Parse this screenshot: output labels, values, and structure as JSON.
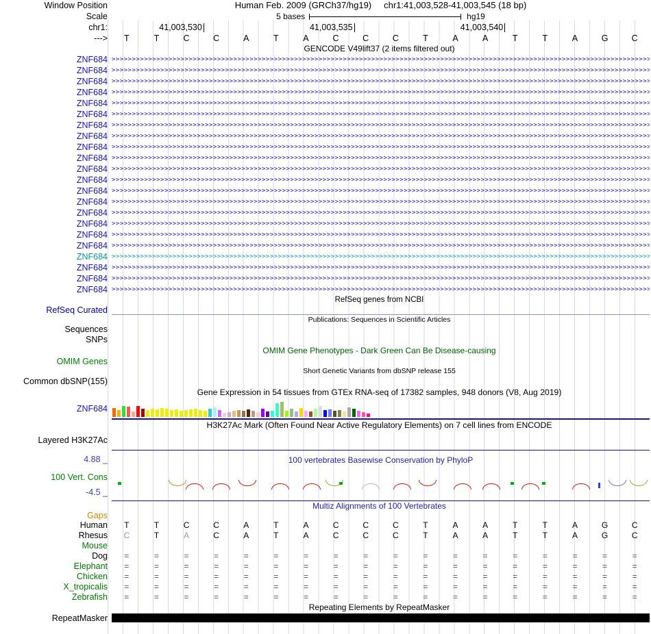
{
  "header": {
    "window_position_label": "Window Position",
    "assembly_title": "Human Feb. 2009 (GRCh37/hg19)",
    "position_title": "chr1:41,003,528-41,003,545 (18 bp)",
    "scale_label": "Scale",
    "scale_text": "5 bases",
    "assembly_short": "hg19",
    "chrom_label": "chr1:",
    "strand_label": "--->",
    "ruler_ticks": [
      {
        "label": "41,003,530",
        "base_end": 3
      },
      {
        "label": "41,003,535",
        "base_end": 8
      },
      {
        "label": "41,003,540",
        "base_end": 13
      }
    ],
    "sequence": [
      "T",
      "T",
      "C",
      "C",
      "A",
      "T",
      "A",
      "C",
      "C",
      "C",
      "T",
      "A",
      "A",
      "T",
      "T",
      "A",
      "G",
      "C"
    ]
  },
  "gencode": {
    "title": "GENCODE V49lift37 (2 items filtered out)",
    "gene_label": "ZNF684",
    "row_count": 22,
    "highlight_index": 18,
    "item_color": "#1414b4",
    "highlight_color": "#009a9a"
  },
  "refseq": {
    "section_title": "RefSeq genes from NCBI",
    "track_label": "RefSeq Curated",
    "label_color": "#000096"
  },
  "publications": {
    "section_title": "Publications: Sequences in Scientific Articles",
    "sequences_label": "Sequences",
    "snps_label": "SNPs"
  },
  "omim": {
    "section_title": "OMIM Gene Phenotypes - Dark Green Can Be Disease-causing",
    "title_color": "#006400",
    "track_label": "OMIM Genes",
    "label_color": "#008000"
  },
  "dbsnp": {
    "section_title": "Short Genetic Variants from dbSNP release 155",
    "track_label": "Common dbSNP(155)"
  },
  "gtex": {
    "section_title": "Gene Expression in 54 tissues from GTEx RNA-seq of 17382 samples, 948 donors (V8, Aug 2019)",
    "track_label": "ZNF684",
    "label_color": "#1414b4",
    "bars": [
      {
        "color": "#FF6600",
        "h": 13
      },
      {
        "color": "#FFAA00",
        "h": 10
      },
      {
        "color": "#33DD33",
        "h": 16
      },
      {
        "color": "#FF5555",
        "h": 15
      },
      {
        "color": "#FFAA99",
        "h": 8
      },
      {
        "color": "#FF0000",
        "h": 16
      },
      {
        "color": "#AA0000",
        "h": 12
      },
      {
        "color": "#EEEE00",
        "h": 10
      },
      {
        "color": "#EEEE00",
        "h": 12
      },
      {
        "color": "#EEEE00",
        "h": 11
      },
      {
        "color": "#EEEE00",
        "h": 13
      },
      {
        "color": "#EEEE00",
        "h": 12
      },
      {
        "color": "#EEEE00",
        "h": 10
      },
      {
        "color": "#EEEE00",
        "h": 11
      },
      {
        "color": "#EEEE00",
        "h": 9
      },
      {
        "color": "#EEEE00",
        "h": 10
      },
      {
        "color": "#EEEE00",
        "h": 11
      },
      {
        "color": "#EEEE00",
        "h": 12
      },
      {
        "color": "#EEEE00",
        "h": 10
      },
      {
        "color": "#EEEE00",
        "h": 9
      },
      {
        "color": "#33CCCC",
        "h": 12
      },
      {
        "color": "#AAEEFF",
        "h": 14
      },
      {
        "color": "#CC66FF",
        "h": 10
      },
      {
        "color": "#FFCCCC",
        "h": 6
      },
      {
        "color": "#CCAADD",
        "h": 7
      },
      {
        "color": "#EEBB77",
        "h": 9
      },
      {
        "color": "#CC9955",
        "h": 10
      },
      {
        "color": "#8B7355",
        "h": 9
      },
      {
        "color": "#552200",
        "h": 11
      },
      {
        "color": "#BB9988",
        "h": 9
      },
      {
        "color": "#FFCCCC",
        "h": 7
      },
      {
        "color": "#9900FF",
        "h": 12
      },
      {
        "color": "#660099",
        "h": 8
      },
      {
        "color": "#22FFDD",
        "h": 9
      },
      {
        "color": "#33FFC2",
        "h": 20
      },
      {
        "color": "#AABB66",
        "h": 22
      },
      {
        "color": "#99FF00",
        "h": 9
      },
      {
        "color": "#99BB88",
        "h": 12
      },
      {
        "color": "#AAAAFF",
        "h": 8
      },
      {
        "color": "#FFD700",
        "h": 13
      },
      {
        "color": "#FFAAFF",
        "h": 9
      },
      {
        "color": "#995522",
        "h": 8
      },
      {
        "color": "#AAFF99",
        "h": 12
      },
      {
        "color": "#DDDDDD",
        "h": 16
      },
      {
        "color": "#0000FF",
        "h": 10
      },
      {
        "color": "#7777FF",
        "h": 11
      },
      {
        "color": "#555522",
        "h": 9
      },
      {
        "color": "#778855",
        "h": 10
      },
      {
        "color": "#FFDD99",
        "h": 8
      },
      {
        "color": "#AAAAAA",
        "h": 14
      },
      {
        "color": "#006600",
        "h": 12
      },
      {
        "color": "#FF66FF",
        "h": 9
      },
      {
        "color": "#FF5599",
        "h": 7
      },
      {
        "color": "#FF00BB",
        "h": 5
      }
    ]
  },
  "h3k27ac": {
    "section_title": "H3K27Ac Mark (Often Found Near Active Regulatory Elements) on 7 cell lines from ENCODE",
    "track_label": "Layered H3K27Ac"
  },
  "phylop": {
    "section_title": "100 vertebrates Basewise Conservation by PhyloP",
    "title_color": "#2222aa",
    "track_label": "100 Vert. Cons",
    "label_color": "#008000",
    "max_label": "4.88 _",
    "min_label": "-4.5 _",
    "axis_color": "#3c3cb4",
    "marks": [
      {
        "base": 0.2,
        "kind": "dot",
        "color": "#00b000"
      },
      {
        "base": 1.9,
        "kind": "arc_down",
        "color": "#b09a20"
      },
      {
        "base": 2.45,
        "kind": "arc_up",
        "color": "#cc2010"
      },
      {
        "base": 3.35,
        "kind": "arc_up",
        "color": "#cc2010"
      },
      {
        "base": 4.2,
        "kind": "arc_down",
        "color": "#cc2010"
      },
      {
        "base": 5.3,
        "kind": "arc_up",
        "color": "#cc2010"
      },
      {
        "base": 6.35,
        "kind": "arc_up",
        "color": "#cc2010"
      },
      {
        "base": 7.1,
        "kind": "arc_down",
        "color": "#a8a432"
      },
      {
        "base": 7.55,
        "kind": "dot",
        "color": "#00b000"
      },
      {
        "base": 8.3,
        "kind": "arc_up",
        "color": "#b8b8b8"
      },
      {
        "base": 9.35,
        "kind": "arc_up",
        "color": "#cc2010"
      },
      {
        "base": 10.2,
        "kind": "arc_down",
        "color": "#cc2010"
      },
      {
        "base": 11.35,
        "kind": "arc_up",
        "color": "#cc2010"
      },
      {
        "base": 12.3,
        "kind": "arc_up",
        "color": "#cc2010"
      },
      {
        "base": 13.25,
        "kind": "dot",
        "color": "#00b000"
      },
      {
        "base": 13.6,
        "kind": "arc_up",
        "color": "#cc2010"
      },
      {
        "base": 14.3,
        "kind": "dot",
        "color": "#00b000"
      },
      {
        "base": 15.3,
        "kind": "arc_up",
        "color": "#cc2010"
      },
      {
        "base": 16.15,
        "kind": "tick",
        "color": "#3344cc"
      },
      {
        "base": 16.5,
        "kind": "arc_down",
        "color": "#6677cc"
      },
      {
        "base": 17.2,
        "kind": "arc_down",
        "color": "#a8a432"
      }
    ]
  },
  "multiz": {
    "section_title": "Multiz Alignments of 100 Vertebrates",
    "title_color": "#2222aa",
    "gaps_label": "Gaps",
    "gaps_color": "#cc8800",
    "gap_char": "=",
    "species": [
      {
        "name": "Human",
        "color": "#000000",
        "type": "bases",
        "bases": [
          {
            "b": "T"
          },
          {
            "b": "T"
          },
          {
            "b": "C"
          },
          {
            "b": "C"
          },
          {
            "b": "A"
          },
          {
            "b": "T"
          },
          {
            "b": "A"
          },
          {
            "b": "C"
          },
          {
            "b": "C"
          },
          {
            "b": "C"
          },
          {
            "b": "T"
          },
          {
            "b": "A"
          },
          {
            "b": "A"
          },
          {
            "b": "T"
          },
          {
            "b": "T"
          },
          {
            "b": "A"
          },
          {
            "b": "G"
          },
          {
            "b": "C"
          }
        ]
      },
      {
        "name": "Rhesus",
        "color": "#000000",
        "type": "bases",
        "bases": [
          {
            "b": "C",
            "dim": true
          },
          {
            "b": "T"
          },
          {
            "b": "A",
            "dim": true
          },
          {
            "b": "C"
          },
          {
            "b": "A"
          },
          {
            "b": "T"
          },
          {
            "b": "A"
          },
          {
            "b": "C"
          },
          {
            "b": "C"
          },
          {
            "b": "C"
          },
          {
            "b": "T"
          },
          {
            "b": "A"
          },
          {
            "b": "A"
          },
          {
            "b": "T"
          },
          {
            "b": "T"
          },
          {
            "b": "A"
          },
          {
            "b": "G"
          },
          {
            "b": "C"
          }
        ]
      },
      {
        "name": "Mouse",
        "color": "#007800",
        "type": "empty"
      },
      {
        "name": "Dog",
        "color": "#000000",
        "type": "gaps"
      },
      {
        "name": "Elephant",
        "color": "#007800",
        "type": "gaps"
      },
      {
        "name": "Chicken",
        "color": "#007800",
        "type": "gaps"
      },
      {
        "name": "X_tropicalis",
        "color": "#007800",
        "type": "gaps"
      },
      {
        "name": "Zebrafish",
        "color": "#007800",
        "type": "gaps"
      }
    ]
  },
  "repeatmasker": {
    "section_title": "Repeating Elements by RepeatMasker",
    "track_label": "RepeatMasker",
    "bar_color": "#000000"
  }
}
